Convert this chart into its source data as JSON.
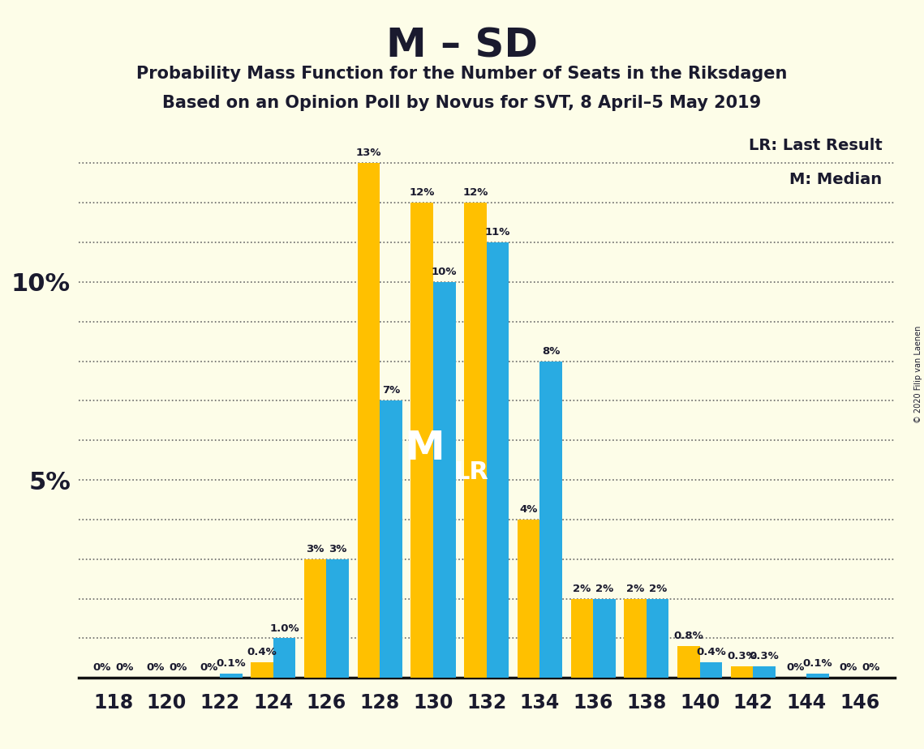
{
  "title": "M – SD",
  "subtitle1": "Probability Mass Function for the Number of Seats in the Riksdagen",
  "subtitle2": "Based on an Opinion Poll by Novus for SVT, 8 April–5 May 2019",
  "copyright": "© 2020 Filip van Laenen",
  "legend_lr": "LR: Last Result",
  "legend_m": "M: Median",
  "seats": [
    118,
    120,
    122,
    124,
    126,
    128,
    130,
    132,
    134,
    136,
    138,
    140,
    142,
    144,
    146
  ],
  "pmf_values": [
    0.0,
    0.0,
    0.1,
    1.0,
    3.0,
    7.0,
    10.0,
    11.0,
    8.0,
    2.0,
    2.0,
    0.4,
    0.3,
    0.1,
    0.0
  ],
  "lr_values": [
    0.0,
    0.0,
    0.0,
    0.4,
    3.0,
    13.0,
    12.0,
    12.0,
    4.0,
    2.0,
    2.0,
    0.8,
    0.3,
    0.0,
    0.0
  ],
  "pmf_labels": [
    "0%",
    "0%",
    "0.1%",
    "1.0%",
    "3%",
    "7%",
    "10%",
    "11%",
    "8%",
    "2%",
    "2%",
    "0.4%",
    "0.3%",
    "0.1%",
    "0%"
  ],
  "lr_labels": [
    "0%",
    "0%",
    "0%",
    "0.4%",
    "3%",
    "13%",
    "12%",
    "12%",
    "4%",
    "2%",
    "2%",
    "0.8%",
    "0.3%",
    "0%",
    "0%"
  ],
  "pmf_color": "#29ABE2",
  "lr_color": "#FFC000",
  "background_color": "#FDFDE8",
  "text_color": "#1A1A2E",
  "median_seat_idx": 6,
  "lr_seat_idx": 6,
  "ylim": [
    0,
    14
  ],
  "ylabel_5": "5%",
  "ylabel_10": "10%",
  "title_fontsize": 36,
  "subtitle_fontsize": 15,
  "tick_fontsize": 17,
  "label_fontsize": 9.5
}
